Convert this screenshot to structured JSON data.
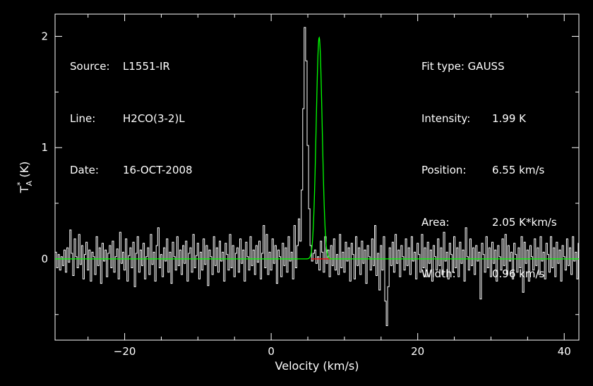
{
  "header_left": {
    "source_label": "Source:",
    "source_value": "L1551-IR",
    "line_label": "Line:",
    "line_value": "H2CO(3-2)L",
    "date_label": "Date:",
    "date_value": "16-OCT-2008"
  },
  "header_right": {
    "fit_type": "Fit type: GAUSS",
    "intensity_label": "Intensity:",
    "intensity_value": "1.99 K",
    "position_label": "Position:",
    "position_value": "6.55 km/s",
    "area_label": "Area:",
    "area_value": "2.05 K*km/s",
    "width_label": "Width:",
    "width_value": "0.96 km/s"
  },
  "chart_data": {
    "type": "line",
    "xlabel": "Velocity (km/s)",
    "ylabel": "T",
    "ylabel_sup": "*",
    "ylabel_sub": "A",
    "ylabel_units": "(K)",
    "xlim": [
      -29.5,
      42
    ],
    "ylim": [
      -0.73,
      2.2
    ],
    "xticks": [
      -20,
      0,
      20,
      40
    ],
    "xtick_labels": [
      "−20",
      "0",
      "20",
      "40"
    ],
    "yticks": [
      0,
      1,
      2
    ],
    "ytick_labels": [
      "0",
      "1",
      "2"
    ],
    "colors": {
      "spectrum": "#ffffff",
      "fit": "#00ff00",
      "baseline_window": "#ff0000",
      "axes": "#ffffff"
    },
    "series": [
      {
        "style": "histogram-step",
        "x_start": -29.5,
        "x_step": 0.2,
        "values": [
          0.06,
          -0.08,
          0.04,
          -0.1,
          0.02,
          -0.06,
          0.08,
          -0.12,
          0.1,
          -0.03,
          0.26,
          0.05,
          -0.15,
          0.18,
          0.02,
          -0.08,
          0.22,
          -0.05,
          0.12,
          -0.18,
          0.04,
          0.15,
          -0.1,
          0.08,
          -0.2,
          0.06,
          0.02,
          -0.14,
          0.2,
          -0.06,
          0.1,
          -0.22,
          0.14,
          -0.02,
          0.08,
          -0.16,
          0.05,
          0.12,
          -0.08,
          0.16,
          -0.12,
          0.02,
          0.09,
          -0.18,
          0.24,
          -0.04,
          0.06,
          -0.1,
          0.18,
          -0.2,
          0.03,
          0.1,
          -0.08,
          0.15,
          -0.25,
          0.05,
          0.2,
          -0.12,
          0.08,
          -0.06,
          0.14,
          -0.18,
          0.02,
          0.1,
          -0.14,
          0.22,
          -0.05,
          0.06,
          -0.2,
          0.12,
          0.28,
          -0.08,
          0.04,
          -0.16,
          0.1,
          -0.02,
          0.18,
          -0.12,
          0.06,
          -0.22,
          0.15,
          0.02,
          -0.1,
          0.2,
          -0.06,
          0.08,
          -0.14,
          0.12,
          -0.04,
          0.16,
          -0.2,
          0.05,
          0.1,
          -0.12,
          0.22,
          -0.08,
          0.03,
          0.14,
          -0.18,
          0.06,
          -0.1,
          0.18,
          -0.05,
          0.12,
          -0.24,
          0.08,
          0.02,
          -0.14,
          0.2,
          -0.06,
          0.1,
          -0.12,
          0.16,
          -0.02,
          0.06,
          -0.2,
          0.14,
          0.04,
          -0.1,
          0.22,
          -0.08,
          0.12,
          -0.16,
          0.05,
          0.1,
          -0.12,
          0.18,
          -0.04,
          0.08,
          -0.2,
          0.15,
          0.02,
          -0.1,
          0.2,
          -0.06,
          0.08,
          -0.14,
          0.12,
          -0.03,
          0.16,
          -0.18,
          0.05,
          0.3,
          -0.08,
          0.22,
          -0.14,
          0.06,
          -0.1,
          0.18,
          -0.04,
          0.12,
          -0.22,
          0.08,
          0.02,
          -0.16,
          0.14,
          -0.06,
          0.1,
          -0.12,
          0.2,
          -0.02,
          0.06,
          -0.18,
          0.3,
          -0.08,
          0.12,
          0.36,
          0.16,
          0.62,
          1.35,
          2.08,
          1.78,
          1.02,
          0.45,
          0.12,
          -0.02,
          0.05,
          0.08,
          -0.04,
          0.02,
          -0.1,
          0.16,
          0.06,
          -0.12,
          0.2,
          -0.04,
          0.08,
          -0.16,
          0.12,
          -0.06,
          0.18,
          -0.1,
          0.04,
          -0.14,
          0.22,
          -0.08,
          0.06,
          -0.12,
          0.15,
          -0.02,
          0.1,
          -0.2,
          0.14,
          0.04,
          -0.18,
          0.2,
          -0.06,
          0.1,
          -0.14,
          0.16,
          -0.04,
          0.08,
          -0.22,
          0.12,
          0.02,
          -0.1,
          0.18,
          -0.06,
          0.3,
          -0.15,
          0.05,
          -0.28,
          0.12,
          -0.1,
          0.2,
          -0.38,
          -0.6,
          -0.25,
          0.1,
          -0.06,
          0.15,
          -0.12,
          0.22,
          -0.04,
          0.08,
          -0.16,
          0.12,
          0.02,
          -0.1,
          0.18,
          -0.06,
          0.1,
          -0.14,
          0.2,
          -0.02,
          0.06,
          -0.18,
          0.14,
          0.04,
          -0.12,
          0.22,
          -0.08,
          0.1,
          -0.16,
          0.15,
          -0.04,
          0.08,
          -0.2,
          0.12,
          0.02,
          -0.1,
          0.18,
          -0.06,
          0.1,
          -0.14,
          0.24,
          -0.02,
          0.06,
          -0.18,
          0.14,
          0.04,
          -0.12,
          0.2,
          -0.08,
          0.1,
          -0.16,
          0.15,
          -0.04,
          0.08,
          -0.2,
          0.28,
          0.02,
          -0.1,
          0.18,
          -0.06,
          0.1,
          -0.14,
          0.12,
          -0.02,
          0.06,
          -0.36,
          0.14,
          0.04,
          -0.12,
          0.2,
          -0.08,
          0.1,
          -0.16,
          0.15,
          -0.04,
          0.08,
          -0.2,
          0.12,
          0.02,
          -0.1,
          0.18,
          -0.06,
          0.22,
          -0.14,
          0.12,
          -0.02,
          0.06,
          -0.18,
          0.14,
          0.04,
          -0.12,
          0.1,
          -0.08,
          0.2,
          -0.3,
          0.15,
          -0.04,
          0.08,
          -0.2,
          0.12,
          0.02,
          -0.1,
          0.18,
          -0.06,
          0.1,
          -0.14,
          0.2,
          -0.02,
          0.06,
          -0.18,
          0.14,
          0.04,
          -0.12,
          0.2,
          -0.08,
          0.1,
          -0.16,
          0.15,
          -0.04,
          0.08,
          -0.2,
          0.12,
          0.02,
          -0.1,
          0.18,
          -0.06,
          0.1,
          -0.14,
          0.2,
          -0.02,
          0.06,
          -0.18,
          0.14,
          0.04,
          -0.12,
          0.2
        ]
      },
      {
        "style": "gaussian-fit",
        "amplitude": 1.99,
        "center": 6.55,
        "fwhm": 0.96
      }
    ],
    "baseline_window": [
      5.5,
      8.5
    ]
  }
}
